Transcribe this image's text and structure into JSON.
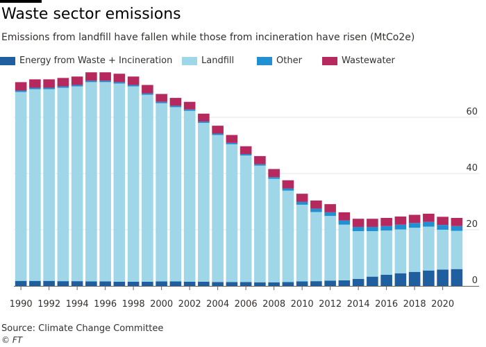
{
  "header": {
    "title": "Waste sector emissions",
    "subtitle": "Emissions from landfill have fallen while those from incineration have risen (MtCo2e)"
  },
  "footer": {
    "source": "Source: Climate Change Committee",
    "credit": "© FT"
  },
  "chart_data": {
    "type": "bar",
    "stacked": true,
    "title": "Waste sector emissions",
    "subtitle": "Emissions from landfill have fallen while those from incineration have risen (MtCo2e)",
    "xlabel": "",
    "ylabel": "MtCo2e",
    "ylim": [
      0,
      75
    ],
    "yticks": [
      0,
      20,
      40,
      60
    ],
    "grid": true,
    "legend_position": "top",
    "categories": [
      "1990",
      "1991",
      "1992",
      "1993",
      "1994",
      "1995",
      "1996",
      "1997",
      "1998",
      "1999",
      "2000",
      "2001",
      "2002",
      "2003",
      "2004",
      "2005",
      "2006",
      "2007",
      "2008",
      "2009",
      "2010",
      "2011",
      "2012",
      "2013",
      "2014",
      "2015",
      "2016",
      "2017",
      "2018",
      "2019",
      "2020",
      "2021"
    ],
    "xtick_labels": [
      "1990",
      "1992",
      "1994",
      "1996",
      "1998",
      "2000",
      "2002",
      "2004",
      "2006",
      "2008",
      "2010",
      "2012",
      "2014",
      "2016",
      "2018",
      "2020"
    ],
    "series": [
      {
        "name": "Energy from Waste + Incineration",
        "color": "#1f5fa0",
        "values": [
          1.8,
          1.8,
          1.8,
          1.7,
          1.7,
          1.6,
          1.6,
          1.5,
          1.5,
          1.5,
          1.6,
          1.6,
          1.5,
          1.5,
          1.4,
          1.4,
          1.4,
          1.3,
          1.3,
          1.4,
          1.6,
          1.7,
          1.9,
          2.0,
          2.5,
          3.3,
          4.0,
          4.5,
          5.0,
          5.5,
          5.8,
          6.0
        ]
      },
      {
        "name": "Landfill",
        "color": "#9fd6e8",
        "values": [
          67.2,
          68.2,
          68.2,
          68.8,
          69.3,
          70.9,
          70.9,
          70.5,
          69.5,
          66.5,
          63.4,
          62.0,
          60.8,
          56.5,
          52.3,
          49.0,
          45.0,
          41.5,
          36.8,
          32.5,
          27.3,
          24.6,
          23.0,
          19.8,
          17.0,
          16.2,
          15.7,
          15.6,
          15.7,
          15.6,
          14.2,
          13.6
        ]
      },
      {
        "name": "Other",
        "color": "#2190d2",
        "values": [
          0.5,
          0.5,
          0.5,
          0.5,
          0.5,
          0.5,
          0.5,
          0.5,
          0.5,
          0.5,
          0.5,
          0.5,
          0.5,
          0.5,
          0.5,
          0.5,
          0.5,
          0.5,
          0.6,
          0.8,
          1.0,
          1.2,
          1.3,
          1.5,
          1.5,
          1.5,
          1.6,
          1.7,
          1.7,
          1.7,
          1.7,
          1.7
        ]
      },
      {
        "name": "Wastewater",
        "color": "#b6295e",
        "values": [
          3.0,
          3.0,
          3.0,
          3.0,
          3.0,
          3.0,
          3.0,
          3.0,
          3.0,
          3.0,
          2.8,
          2.8,
          2.7,
          2.8,
          2.8,
          2.8,
          2.8,
          2.9,
          2.9,
          2.9,
          2.9,
          2.9,
          2.9,
          2.9,
          2.9,
          2.9,
          2.9,
          2.9,
          2.9,
          2.9,
          2.9,
          2.9
        ]
      }
    ]
  }
}
